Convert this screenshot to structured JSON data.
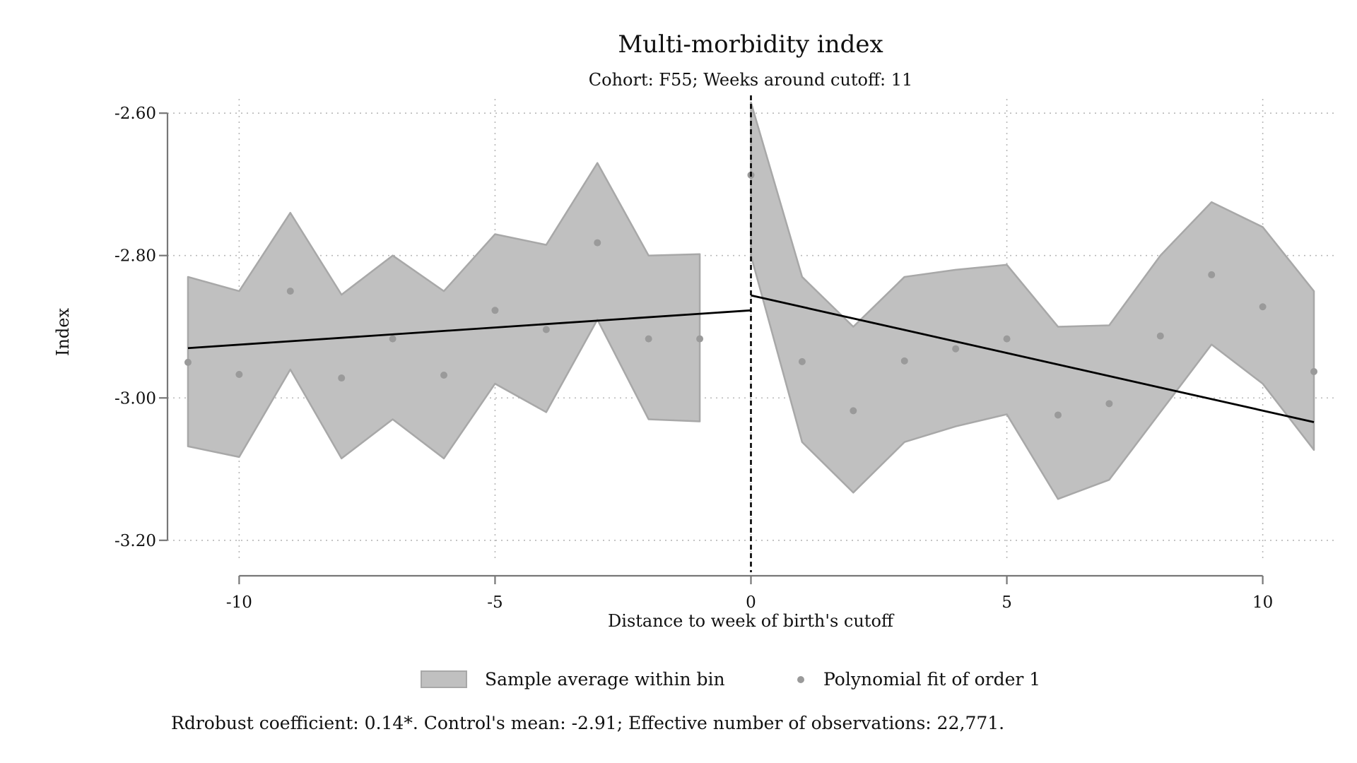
{
  "chart_data": {
    "type": "scatter",
    "title": "Multi-morbidity index",
    "subtitle": "Cohort: F55; Weeks around cutoff: 11",
    "xlabel": "Distance to week of birth's cutoff",
    "ylabel": "Index",
    "xlim": [
      -11.4,
      11.4
    ],
    "ylim": [
      -3.225,
      -2.58
    ],
    "xticks": [
      -10,
      -5,
      0,
      5,
      10
    ],
    "xtick_labels": [
      "-10",
      "-5",
      "0",
      "5",
      "10"
    ],
    "yticks": [
      -2.6,
      -2.8,
      -3.0,
      -3.2
    ],
    "ytick_labels": [
      "-2.60",
      "-2.80",
      "-3.00",
      "-3.20"
    ],
    "grid": true,
    "cutoff_x": 0,
    "legend": {
      "position": "bottom",
      "items": [
        {
          "label": "Sample average within bin",
          "kind": "band"
        },
        {
          "label": "Polynomial fit of order 1",
          "kind": "dot"
        }
      ]
    },
    "series": [
      {
        "name": "Sample average within bin",
        "type": "band",
        "segments": [
          {
            "x": [
              -11,
              -10,
              -9,
              -8,
              -7,
              -6,
              -5,
              -4,
              -3,
              -2,
              -1
            ],
            "upper": [
              -2.83,
              -2.85,
              -2.74,
              -2.855,
              -2.8,
              -2.85,
              -2.77,
              -2.785,
              -2.67,
              -2.8,
              -2.798
            ],
            "lower": [
              -3.068,
              -3.083,
              -2.96,
              -3.085,
              -3.03,
              -3.085,
              -2.98,
              -3.02,
              -2.89,
              -3.03,
              -3.033
            ]
          },
          {
            "x": [
              0,
              1,
              2,
              3,
              4,
              5,
              6,
              7,
              8,
              9,
              10,
              11
            ],
            "upper": [
              -2.585,
              -2.83,
              -2.9,
              -2.83,
              -2.82,
              -2.813,
              -2.9,
              -2.898,
              -2.8,
              -2.725,
              -2.76,
              -2.85
            ],
            "lower": [
              -2.8,
              -3.062,
              -3.133,
              -3.062,
              -3.04,
              -3.023,
              -3.142,
              -3.115,
              -3.02,
              -2.925,
              -2.98,
              -3.073
            ]
          }
        ]
      },
      {
        "name": "Polynomial fit of order 1",
        "type": "scatter",
        "x": [
          -11,
          -10,
          -9,
          -8,
          -7,
          -6,
          -5,
          -4,
          -3,
          -2,
          -1,
          0,
          1,
          2,
          3,
          4,
          5,
          6,
          7,
          8,
          9,
          10,
          11
        ],
        "y": [
          -2.95,
          -2.967,
          -2.85,
          -2.972,
          -2.917,
          -2.968,
          -2.877,
          -2.904,
          -2.782,
          -2.917,
          -2.917,
          -2.687,
          -2.949,
          -3.018,
          -2.948,
          -2.931,
          -2.917,
          -3.024,
          -3.008,
          -2.913,
          -2.827,
          -2.872,
          -2.963
        ]
      },
      {
        "type": "line",
        "segments": [
          {
            "x": [
              -11,
              0
            ],
            "y": [
              -2.93,
              -2.877
            ]
          },
          {
            "x": [
              0,
              11
            ],
            "y": [
              -2.856,
              -3.034
            ]
          }
        ]
      }
    ],
    "note": "Rdrobust coefficient: 0.14*. Control's mean: -2.91; Effective number of observations: 22,771.",
    "colors": {
      "band_fill": "#c0c0c0",
      "band_stroke": "#a8a8a8",
      "dot": "#9a9a9a",
      "fit_line": "#000000",
      "axis": "#777777",
      "grid": "#b8b8b8"
    }
  }
}
